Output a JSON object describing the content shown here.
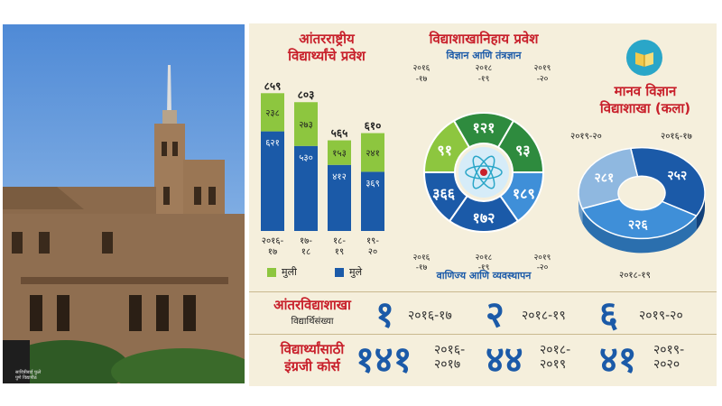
{
  "colors": {
    "green": "#8dc63f",
    "blue": "#1b5aa8",
    "darkgreen": "#2e8b3e",
    "lightblue": "#3f8fd8",
    "red": "#c8202b",
    "panel": "#f5efdc"
  },
  "photo": {
    "caption_line1": "सावित्रीबाई फुले",
    "caption_line2": "पुणे विद्यापीठ"
  },
  "intl": {
    "title_line1": "आंतरराष्ट्रीय",
    "title_line2": "विद्यार्थ्यांचे प्रवेश",
    "legend": [
      {
        "label": "मुली",
        "color": "#8dc63f"
      },
      {
        "label": "मुले",
        "color": "#1b5aa8"
      }
    ]
  },
  "faculty": {
    "title": "विद्याशाखानिहाय प्रवेश",
    "science_label": "विज्ञान आणि तंत्रज्ञान",
    "commerce_label": "वाणिज्य आणि व्यवस्थापन",
    "ring_years_top": [
      "२०१६\n-१७",
      "२०१८\n-१९",
      "२०१९\n-२०"
    ],
    "ring_years_bottom": [
      "२०१६\n-१७",
      "२०१८\n-१९",
      "२०१९\n-२०"
    ]
  },
  "arts": {
    "title_line1": "मानव विज्ञान",
    "title_line2": "विद्याशाखा (कला)",
    "years": [
      "२०१९-२०",
      "२०१६-१७",
      "२०१८-१९"
    ],
    "book_icon": "book-icon"
  },
  "inter": {
    "title": "आंतरविद्याशाखा",
    "subtitle": "विद्यार्थिसंख्या",
    "items": [
      {
        "num": "१",
        "year": "२०१६-१७"
      },
      {
        "num": "२",
        "year": "२०१८-१९"
      },
      {
        "num": "६",
        "year": "२०१९-२०"
      }
    ]
  },
  "eng": {
    "title_line1": "विद्यार्थ्यांसाठी",
    "title_line2": "इंग्रजी कोर्स",
    "items": [
      {
        "num": "१४१",
        "year1": "२०१६-",
        "year2": "२०१७"
      },
      {
        "num": "४४",
        "year1": "२०१८-",
        "year2": "२०१९"
      },
      {
        "num": "४१",
        "year1": "२०१९-",
        "year2": "२०२०"
      }
    ]
  },
  "chart_data": [
    {
      "type": "bar",
      "title": "आंतरराष्ट्रीय विद्यार्थ्यांचे प्रवेश",
      "stacked": true,
      "categories": [
        "२०१६-१७",
        "१७-१८",
        "१८-१९",
        "१९-२०"
      ],
      "totals": [
        "८५९",
        "८०३",
        "५६५",
        "६१०"
      ],
      "series": [
        {
          "name": "मुले",
          "color": "#1b5aa8",
          "values": [
            621,
            530,
            412,
            369
          ],
          "labels": [
            "६२१",
            "५३०",
            "४१२",
            "३६९"
          ]
        },
        {
          "name": "मुली",
          "color": "#8dc63f",
          "values": [
            238,
            273,
            153,
            241
          ],
          "labels": [
            "२३८",
            "२७३",
            "१५३",
            "२४१"
          ]
        }
      ],
      "ylim": [
        0,
        900
      ]
    },
    {
      "type": "pie",
      "title": "विद्याशाखानिहाय प्रवेश",
      "rings": [
        {
          "name": "विज्ञान आणि तंत्रज्ञान",
          "slices": [
            {
              "label": "९१",
              "value": 91,
              "color": "#8dc63f"
            },
            {
              "label": "१२१",
              "value": 121,
              "color": "#2e8b3e"
            },
            {
              "label": "९३",
              "value": 93,
              "color": "#2e8b3e"
            }
          ]
        },
        {
          "name": "वाणिज्य आणि व्यवस्थापन",
          "slices": [
            {
              "label": "१८९",
              "value": 189,
              "color": "#3f8fd8"
            },
            {
              "label": "१७२",
              "value": 172,
              "color": "#1b5aa8"
            },
            {
              "label": "३६६",
              "value": 366,
              "color": "#1b5aa8"
            }
          ]
        }
      ]
    },
    {
      "type": "pie",
      "title": "मानव विज्ञान विद्याशाखा (कला)",
      "slices": [
        {
          "label": "२५२",
          "value": 252,
          "color": "#1b5aa8"
        },
        {
          "label": "२२६",
          "value": 226,
          "color": "#3f8fd8"
        },
        {
          "label": "२८१",
          "value": 281,
          "color": "#8fb8e0"
        }
      ]
    }
  ]
}
